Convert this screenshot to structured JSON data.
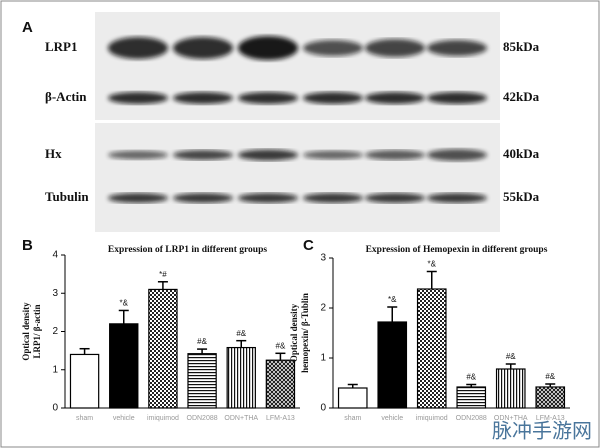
{
  "blot": {
    "panel_label": "A",
    "rows": [
      {
        "label": "LRP1",
        "size": "85kDa"
      },
      {
        "label": "β-Actin",
        "size": "42kDa"
      },
      {
        "label": "Hx",
        "size": "40kDa"
      },
      {
        "label": "Tubulin",
        "size": "55kDa"
      }
    ]
  },
  "chart_data": [
    {
      "type": "bar",
      "panel_label": "B",
      "title": "Expression of LRP1 in different groups",
      "y_label": [
        "Optical density",
        "LRP1/ β-actin"
      ],
      "categories": [
        "sham",
        "vehicle",
        "imiquimod",
        "ODN2088",
        "ODN+THA",
        "LFM-A13"
      ],
      "values": [
        1.4,
        2.2,
        3.1,
        1.42,
        1.58,
        1.25
      ],
      "errors": [
        0.15,
        0.35,
        0.2,
        0.12,
        0.18,
        0.18
      ],
      "annotations": [
        null,
        "*&",
        "*#",
        "#&",
        "#&",
        "#&"
      ],
      "patterns": [
        "white",
        "black",
        "checker",
        "hlines",
        "vlines",
        "crosshatch"
      ],
      "ylim": [
        0,
        4
      ],
      "yticks": [
        0,
        1,
        2,
        3,
        4
      ]
    },
    {
      "type": "bar",
      "panel_label": "C",
      "title": "Expression of Hemopexin  in different  groups",
      "y_label": [
        "Optical density",
        "hemopexin/ β-Tublin"
      ],
      "categories": [
        "sham",
        "vehicle",
        "imiquimod",
        "ODN2088",
        "ODN+THA",
        "LFM-A13"
      ],
      "values": [
        0.4,
        1.72,
        2.38,
        0.42,
        0.78,
        0.42
      ],
      "errors": [
        0.07,
        0.3,
        0.35,
        0.05,
        0.1,
        0.06
      ],
      "annotations": [
        null,
        "*&",
        "*&",
        "#&",
        "#&",
        "#&"
      ],
      "patterns": [
        "white",
        "black",
        "checker",
        "hlines",
        "vlines",
        "crosshatch"
      ],
      "ylim": [
        0,
        3
      ],
      "yticks": [
        0,
        1,
        2,
        3
      ]
    }
  ],
  "watermark": "脉冲手游网"
}
